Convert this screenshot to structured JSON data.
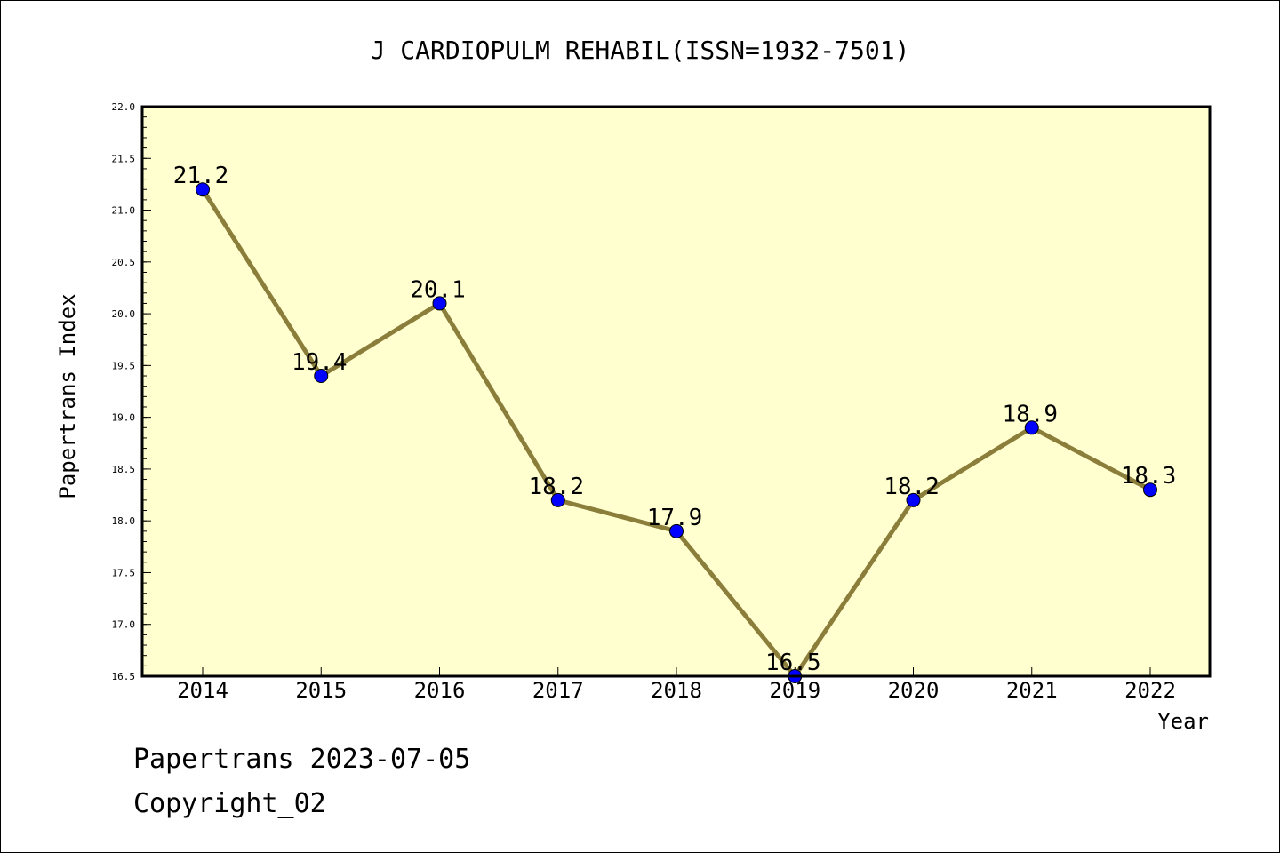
{
  "chart_data": {
    "type": "line",
    "title": "J CARDIOPULM REHABIL(ISSN=1932-7501)",
    "xlabel": "Year",
    "ylabel": "Papertrans Index",
    "categories": [
      "2014",
      "2015",
      "2016",
      "2017",
      "2018",
      "2019",
      "2020",
      "2021",
      "2022"
    ],
    "values": [
      21.2,
      19.4,
      20.1,
      18.2,
      17.9,
      16.5,
      18.2,
      18.9,
      18.3
    ],
    "data_labels": [
      "21.2",
      "19.4",
      "20.1",
      "18.2",
      "17.9",
      "16.5",
      "18.2",
      "18.9",
      "18.3"
    ],
    "ylim": [
      16.5,
      22.0
    ],
    "y_ticks": [
      "16.5",
      "17.0",
      "17.5",
      "18.0",
      "18.5",
      "19.0",
      "19.5",
      "20.0",
      "20.5",
      "21.0",
      "21.5",
      "22.0"
    ],
    "grid": false,
    "colors": {
      "plot_background": "#ffffd0",
      "line": "#8b7d3a",
      "marker": "#0000ff"
    }
  },
  "footer": {
    "line1": "Papertrans 2023-07-05",
    "line2": "Copyright_02"
  }
}
